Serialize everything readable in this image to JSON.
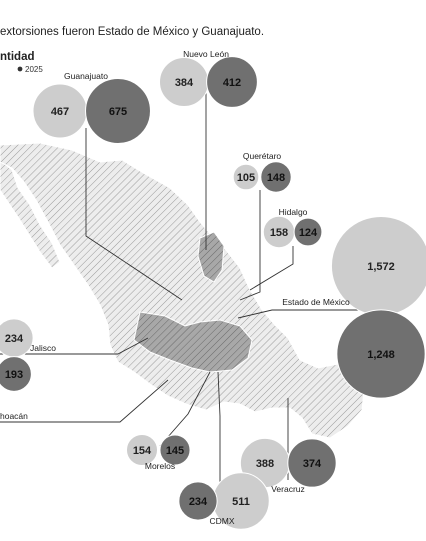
{
  "header": {
    "intro": "extorsiones fueron Estado de México y Guanajuato.",
    "legend_title": "ntidad",
    "legend_label": "2025"
  },
  "colors": {
    "dark": "#707070",
    "light": "#cdcdcd",
    "map_fill": "#e8e8e8",
    "map_highlight": "#b4b4b4",
    "map_dark": "#8a8a8a"
  },
  "chart_data": {
    "type": "bubble",
    "title": "",
    "legend": [
      "2025"
    ],
    "states": [
      {
        "name": "Guanajuato",
        "light": 467,
        "dark": 675
      },
      {
        "name": "Nuevo León",
        "light": 384,
        "dark": 412
      },
      {
        "name": "Querétaro",
        "light": 105,
        "dark": 148
      },
      {
        "name": "Hidalgo",
        "light": 158,
        "dark": 124
      },
      {
        "name": "Estado de México",
        "light": 1572,
        "dark": 1248
      },
      {
        "name": "Jalisco",
        "light": 234,
        "dark": 193
      },
      {
        "name": "hoacán",
        "light": null,
        "dark": null
      },
      {
        "name": "Morelos",
        "light": 154,
        "dark": 145
      },
      {
        "name": "Veracruz",
        "light": 388,
        "dark": 374
      },
      {
        "name": "CDMX",
        "light": 511,
        "dark": 234
      }
    ]
  }
}
